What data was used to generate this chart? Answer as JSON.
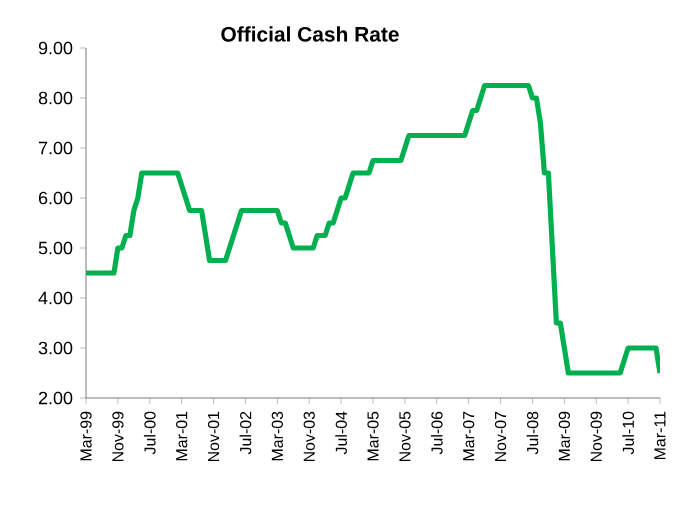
{
  "chart_data": {
    "type": "line",
    "title": "Official Cash Rate",
    "color": "#00b050",
    "x": [
      "1999-03",
      "1999-10",
      "1999-11",
      "1999-12",
      "2000-01",
      "2000-02",
      "2000-03",
      "2000-04",
      "2000-05",
      "2001-02",
      "2001-03",
      "2001-04",
      "2001-05",
      "2001-08",
      "2001-09",
      "2001-10",
      "2002-02",
      "2002-03",
      "2002-04",
      "2002-05",
      "2002-06",
      "2003-03",
      "2003-04",
      "2003-05",
      "2003-06",
      "2003-07",
      "2003-12",
      "2004-01",
      "2004-03",
      "2004-04",
      "2004-05",
      "2004-06",
      "2004-07",
      "2004-08",
      "2004-09",
      "2004-10",
      "2005-02",
      "2005-03",
      "2005-10",
      "2005-11",
      "2005-12",
      "2007-02",
      "2007-03",
      "2007-04",
      "2007-05",
      "2007-06",
      "2007-07",
      "2008-06",
      "2008-07",
      "2008-08",
      "2008-09",
      "2008-10",
      "2008-11",
      "2008-12",
      "2009-01",
      "2009-02",
      "2009-03",
      "2009-04",
      "2010-05",
      "2010-06",
      "2010-07",
      "2011-02",
      "2011-03"
    ],
    "values": [
      4.5,
      4.5,
      5.0,
      5.0,
      5.25,
      5.25,
      5.75,
      6.0,
      6.5,
      6.5,
      6.25,
      6.0,
      5.75,
      5.75,
      5.25,
      4.75,
      4.75,
      5.0,
      5.25,
      5.5,
      5.75,
      5.75,
      5.5,
      5.5,
      5.25,
      5.0,
      5.0,
      5.25,
      5.25,
      5.5,
      5.5,
      5.75,
      6.0,
      6.0,
      6.25,
      6.5,
      6.5,
      6.75,
      6.75,
      7.0,
      7.25,
      7.25,
      7.5,
      7.75,
      7.75,
      8.0,
      8.25,
      8.25,
      8.0,
      8.0,
      7.5,
      6.5,
      6.5,
      5.0,
      3.5,
      3.5,
      3.0,
      2.5,
      2.5,
      2.75,
      3.0,
      3.0,
      2.5
    ],
    "xlim": [
      "1999-03",
      "2011-03"
    ],
    "xticks": [
      {
        "value": "1999-03",
        "label": "Mar-99"
      },
      {
        "value": "1999-11",
        "label": "Nov-99"
      },
      {
        "value": "2000-07",
        "label": "Jul-00"
      },
      {
        "value": "2001-03",
        "label": "Mar-01"
      },
      {
        "value": "2001-11",
        "label": "Nov-01"
      },
      {
        "value": "2002-07",
        "label": "Jul-02"
      },
      {
        "value": "2003-03",
        "label": "Mar-03"
      },
      {
        "value": "2003-11",
        "label": "Nov-03"
      },
      {
        "value": "2004-07",
        "label": "Jul-04"
      },
      {
        "value": "2005-03",
        "label": "Mar-05"
      },
      {
        "value": "2005-11",
        "label": "Nov-05"
      },
      {
        "value": "2006-07",
        "label": "Jul-06"
      },
      {
        "value": "2007-03",
        "label": "Mar-07"
      },
      {
        "value": "2007-11",
        "label": "Nov-07"
      },
      {
        "value": "2008-07",
        "label": "Jul-08"
      },
      {
        "value": "2009-03",
        "label": "Mar-09"
      },
      {
        "value": "2009-11",
        "label": "Nov-09"
      },
      {
        "value": "2010-07",
        "label": "Jul-10"
      },
      {
        "value": "2011-03",
        "label": "Mar-11"
      }
    ],
    "ylim": [
      2,
      9
    ],
    "yticks": [
      {
        "value": 2,
        "label": "2.00"
      },
      {
        "value": 3,
        "label": "3.00"
      },
      {
        "value": 4,
        "label": "4.00"
      },
      {
        "value": 5,
        "label": "5.00"
      },
      {
        "value": 6,
        "label": "6.00"
      },
      {
        "value": 7,
        "label": "7.00"
      },
      {
        "value": 8,
        "label": "8.00"
      },
      {
        "value": 9,
        "label": "9.00"
      }
    ],
    "grid": false,
    "marker": "none",
    "line_style": "solid"
  }
}
